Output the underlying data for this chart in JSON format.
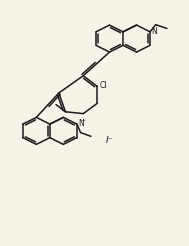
{
  "bg_color": "#f7f2e8",
  "line_color": "#1a1a1a",
  "line_width": 1.1,
  "text_color": "#1a1a1a",
  "figsize": [
    1.89,
    2.46
  ],
  "dpi": 100,
  "xlim": [
    0,
    10
  ],
  "ylim": [
    0,
    13
  ]
}
